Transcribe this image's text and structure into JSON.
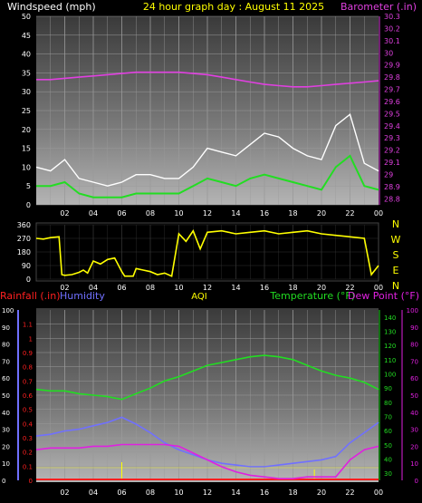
{
  "header": {
    "title": "24 hour graph day : August 11 2025",
    "left_label": "Windspeed (mph)",
    "right_label": "Barometer (.in)"
  },
  "colors": {
    "background": "#000000",
    "title": "#ffff00",
    "barometer": "#e040e0",
    "wind_gust": "#ffffff",
    "wind_avg": "#22dd22",
    "wind_dir": "#ffff00",
    "temperature": "#22dd22",
    "dew_point": "#e020e0",
    "humidity": "#7070ff",
    "rainfall": "#ff2020",
    "aqi": "#ffff00"
  },
  "chart_data": [
    {
      "type": "line",
      "x_ticks": [
        "02",
        "04",
        "06",
        "08",
        "10",
        "12",
        "14",
        "16",
        "18",
        "20",
        "22",
        "00"
      ],
      "y_left_ticks": [
        "0",
        "5",
        "10",
        "15",
        "20",
        "25",
        "30",
        "35",
        "40",
        "45",
        "50"
      ],
      "y_left_range": [
        0,
        50
      ],
      "y_right_ticks": [
        "28.8",
        "28.9",
        "29",
        "29.1",
        "29.2",
        "29.3",
        "29.4",
        "29.5",
        "29.6",
        "29.7",
        "29.8",
        "29.9",
        "30",
        "30.1",
        "30.2",
        "30.3"
      ],
      "y_right_range": [
        28.75,
        30.3
      ],
      "series": [
        {
          "name": "Windspeed (mph)",
          "role": "gust",
          "x": [
            0,
            1,
            2,
            3,
            4,
            5,
            6,
            7,
            8,
            9,
            10,
            11,
            12,
            13,
            14,
            15,
            16,
            17,
            18,
            19,
            20,
            21,
            22,
            23,
            24
          ],
          "values": [
            10,
            9,
            12,
            7,
            6,
            5,
            6,
            8,
            8,
            7,
            7,
            10,
            15,
            14,
            13,
            16,
            19,
            18,
            15,
            13,
            12,
            21,
            24,
            11,
            9
          ]
        },
        {
          "name": "avg",
          "role": "average",
          "x": [
            0,
            1,
            2,
            3,
            4,
            5,
            6,
            7,
            8,
            9,
            10,
            11,
            12,
            13,
            14,
            15,
            16,
            17,
            18,
            19,
            20,
            21,
            22,
            23,
            24
          ],
          "values": [
            5,
            5,
            6,
            3,
            2,
            2,
            2,
            3,
            3,
            3,
            3,
            5,
            7,
            6,
            5,
            7,
            8,
            7,
            6,
            5,
            4,
            10,
            13,
            5,
            4
          ]
        },
        {
          "name": "Barometer (.in)",
          "axis": "right",
          "x": [
            0,
            1,
            2,
            3,
            4,
            5,
            6,
            7,
            8,
            9,
            10,
            11,
            12,
            13,
            14,
            15,
            16,
            17,
            18,
            19,
            20,
            21,
            22,
            23,
            24
          ],
          "values": [
            29.78,
            29.78,
            29.79,
            29.8,
            29.81,
            29.82,
            29.83,
            29.84,
            29.84,
            29.84,
            29.84,
            29.83,
            29.82,
            29.8,
            29.78,
            29.76,
            29.74,
            29.73,
            29.72,
            29.72,
            29.73,
            29.74,
            29.75,
            29.76,
            29.77
          ]
        }
      ]
    },
    {
      "type": "line",
      "x_ticks": [
        "02",
        "04",
        "06",
        "08",
        "10",
        "12",
        "14",
        "16",
        "18",
        "20",
        "22",
        "00"
      ],
      "y_ticks": [
        "0",
        "90",
        "180",
        "270",
        "360"
      ],
      "y_range": [
        0,
        360
      ],
      "compass": [
        "N",
        "W",
        "S",
        "E",
        "N"
      ],
      "series": [
        {
          "name": "wind direction",
          "x": [
            0,
            0.5,
            1,
            1.6,
            1.8,
            2,
            2.5,
            3,
            3.3,
            3.6,
            4,
            4.5,
            5,
            5.5,
            6,
            6.2,
            6.8,
            7,
            7.5,
            8,
            8.5,
            9,
            9.5,
            10,
            10.5,
            11,
            11.5,
            12,
            13,
            14,
            15,
            16,
            17,
            18,
            19,
            20,
            21,
            22,
            23,
            23.5,
            24
          ],
          "values": [
            270,
            265,
            275,
            280,
            30,
            25,
            30,
            45,
            60,
            40,
            120,
            100,
            130,
            140,
            50,
            20,
            20,
            70,
            60,
            50,
            30,
            40,
            20,
            300,
            250,
            320,
            200,
            310,
            320,
            300,
            310,
            320,
            300,
            310,
            320,
            300,
            290,
            280,
            270,
            30,
            90
          ]
        }
      ]
    },
    {
      "type": "line",
      "header_labels": {
        "rainfall": "Rainfall (.in)",
        "humidity": "Humidity",
        "aqi": "AQI",
        "temperature": "Temperature (°F)",
        "dew_point": "Dew Point (°F)"
      },
      "x_ticks": [
        "02",
        "04",
        "06",
        "08",
        "10",
        "12",
        "14",
        "16",
        "18",
        "20",
        "22",
        "00"
      ],
      "y_rain_ticks": [
        "0",
        "0.1",
        "0.2",
        "0.3",
        "0.4",
        "0.5",
        "0.6",
        "0.7",
        "0.8",
        "0.9",
        "1",
        "1.1"
      ],
      "y_humidity_ticks": [
        "0",
        "10",
        "20",
        "30",
        "40",
        "50",
        "60",
        "70",
        "80",
        "90",
        "100"
      ],
      "y_temp_ticks": [
        "30",
        "40",
        "50",
        "60",
        "70",
        "80",
        "90",
        "100",
        "110",
        "120",
        "130",
        "140"
      ],
      "y_dew_ticks": [
        "0",
        "10",
        "20",
        "30",
        "40",
        "50",
        "60",
        "70",
        "80",
        "90",
        "100"
      ],
      "y_temp_range": [
        25,
        145
      ],
      "y_rain_range": [
        0,
        1.2
      ],
      "series": [
        {
          "name": "Temperature (°F)",
          "x": [
            0,
            1,
            2,
            3,
            4,
            5,
            6,
            7,
            8,
            9,
            10,
            11,
            12,
            13,
            14,
            15,
            16,
            17,
            18,
            19,
            20,
            21,
            22,
            23,
            24
          ],
          "values": [
            89,
            88,
            88,
            86,
            85,
            84,
            82,
            86,
            90,
            95,
            98,
            102,
            106,
            108,
            110,
            112,
            113,
            112,
            110,
            106,
            102,
            99,
            97,
            94,
            89
          ]
        },
        {
          "name": "Humidity",
          "axis": "humidity",
          "x": [
            0,
            1,
            2,
            3,
            4,
            5,
            6,
            7,
            8,
            9,
            10,
            11,
            12,
            13,
            14,
            15,
            16,
            17,
            18,
            19,
            20,
            21,
            22,
            23,
            24
          ],
          "values": [
            26,
            27,
            29,
            30,
            32,
            34,
            37,
            33,
            28,
            22,
            18,
            15,
            12,
            10,
            9,
            8,
            8,
            9,
            10,
            11,
            12,
            14,
            22,
            28,
            34
          ]
        },
        {
          "name": "Dew Point (°F)",
          "axis": "dew",
          "x": [
            0,
            1,
            2,
            3,
            4,
            5,
            6,
            7,
            8,
            9,
            10,
            11,
            12,
            13,
            14,
            15,
            16,
            17,
            18,
            19,
            20,
            21,
            22,
            23,
            24
          ],
          "values": [
            18,
            19,
            19,
            19,
            20,
            20,
            21,
            21,
            21,
            21,
            20,
            16,
            12,
            8,
            5,
            3,
            2,
            1,
            1,
            2,
            2,
            2,
            12,
            18,
            20
          ]
        },
        {
          "name": "AQI",
          "axis": "aqi",
          "x": [
            0,
            24
          ],
          "values": [
            1,
            1
          ]
        }
      ]
    }
  ]
}
